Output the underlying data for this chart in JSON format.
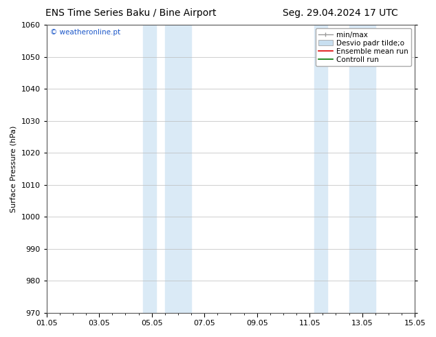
{
  "title_left": "ENS Time Series Baku / Bine Airport",
  "title_right": "Seg. 29.04.2024 17 UTC",
  "ylabel": "Surface Pressure (hPa)",
  "ylim": [
    970,
    1060
  ],
  "yticks": [
    970,
    980,
    990,
    1000,
    1010,
    1020,
    1030,
    1040,
    1050,
    1060
  ],
  "xtick_labels": [
    "01.05",
    "03.05",
    "05.05",
    "07.05",
    "09.05",
    "11.05",
    "13.05",
    "15.05"
  ],
  "xtick_positions": [
    0,
    2,
    4,
    6,
    8,
    10,
    12,
    14
  ],
  "shade_regions": [
    {
      "start": 3.5,
      "end": 4.0
    },
    {
      "start": 4.0,
      "end": 5.5
    },
    {
      "start": 10.0,
      "end": 10.5
    },
    {
      "start": 10.5,
      "end": 12.5
    }
  ],
  "shade_bands": [
    {
      "start": 3.6,
      "end": 4.1
    },
    {
      "start": 4.5,
      "end": 5.5
    },
    {
      "start": 10.1,
      "end": 10.6
    },
    {
      "start": 11.5,
      "end": 12.5
    }
  ],
  "shade_color": "#daeaf6",
  "watermark": "© weatheronline.pt",
  "watermark_color": "#1a56c8",
  "background_color": "#ffffff",
  "grid_color": "#bbbbbb",
  "title_fontsize": 10,
  "label_fontsize": 8,
  "tick_fontsize": 8,
  "legend_fontsize": 7.5
}
